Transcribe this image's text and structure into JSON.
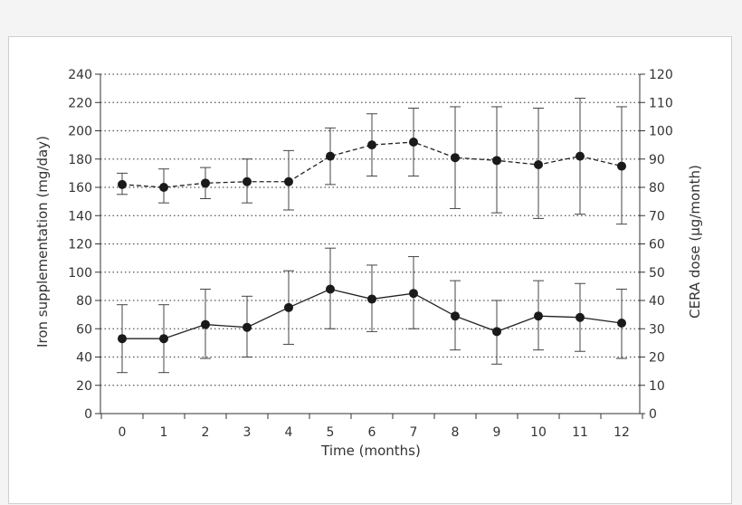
{
  "chart_data": {
    "type": "line",
    "xlabel": "Time (months)",
    "ylabel_left": "Iron supplementation (mg/day)",
    "ylabel_right": "CERA dose (µg/month)",
    "x": [
      0,
      1,
      2,
      3,
      4,
      5,
      6,
      7,
      8,
      9,
      10,
      11,
      12
    ],
    "x_tick_labels": [
      "0",
      "1",
      "2",
      "3",
      "4",
      "5",
      "6",
      "7",
      "8",
      "9",
      "10",
      "11",
      "12"
    ],
    "ylim_left": [
      0,
      240
    ],
    "ylim_right": [
      0,
      120
    ],
    "y_ticks_left": [
      "0",
      "20",
      "40",
      "60",
      "80",
      "100",
      "120",
      "140",
      "160",
      "180",
      "200",
      "220",
      "240"
    ],
    "y_ticks_right": [
      "0",
      "10",
      "20",
      "30",
      "40",
      "50",
      "60",
      "70",
      "80",
      "90",
      "100",
      "110",
      "120"
    ],
    "grid": "horizontal dotted",
    "series": [
      {
        "style": "dashed",
        "axis": "right",
        "values": [
          81,
          80,
          81.5,
          82,
          82,
          91,
          95,
          96,
          90.5,
          89.5,
          88,
          91,
          87.5
        ],
        "error_low": [
          77.5,
          74.5,
          76,
          74.5,
          72,
          81,
          84,
          84,
          72.5,
          71,
          69,
          70.5,
          67
        ],
        "error_high": [
          85,
          86.5,
          87,
          90,
          93,
          101,
          106,
          108,
          108.5,
          108.5,
          108,
          111.5,
          108.5
        ]
      },
      {
        "style": "solid",
        "axis": "left",
        "values": [
          53,
          53,
          63,
          61,
          75,
          88,
          81,
          85,
          69,
          58,
          69,
          68,
          64
        ],
        "error_low": [
          29,
          29,
          39,
          40,
          49,
          60,
          58,
          60,
          45,
          35,
          45,
          44,
          39
        ],
        "error_high": [
          77,
          77,
          88,
          83,
          101,
          117,
          105,
          111,
          94,
          80,
          94,
          92,
          88
        ]
      }
    ]
  }
}
